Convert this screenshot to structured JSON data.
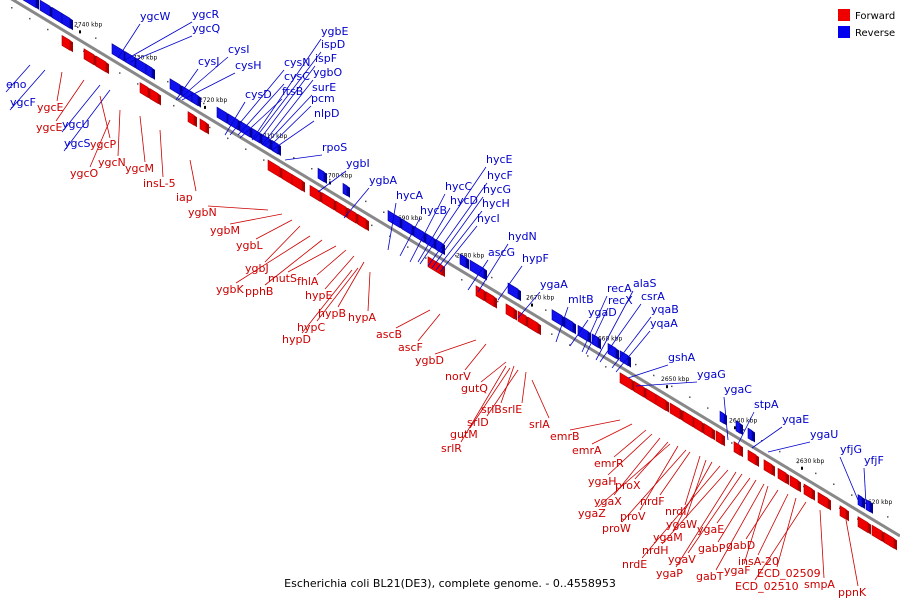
{
  "caption": "Escherichia coli BL21(DE3), complete genome. - 0..4558953",
  "legend": [
    {
      "label": "Forward",
      "color": "#ee0000"
    },
    {
      "label": "Reverse",
      "color": "#0000ee"
    }
  ],
  "colors": {
    "forward": "#ee0000",
    "reverse": "#1111ee",
    "backbone": "#888888"
  },
  "ticks": [
    "2740 kbp",
    "2730 kbp",
    "2720 kbp",
    "2710 kbp",
    "2700 kbp",
    "2690 kbp",
    "2680 kbp",
    "2670 kbp",
    "2660 kbp",
    "2650 kbp",
    "2640 kbp",
    "2630 kbp",
    "2620 kbp"
  ],
  "reverse_genes": [
    "eno",
    "ygcF",
    "ygcW",
    "ygcR",
    "ygcQ",
    "cysI",
    "cysJ",
    "cysH",
    "ygcU",
    "ygcS",
    "cysD",
    "cysN",
    "cysC",
    "ftsB",
    "ygbE",
    "ispD",
    "ispF",
    "ygbO",
    "surE",
    "pcm",
    "nlpD",
    "rpoS",
    "ygbI",
    "ygbA",
    "hycA",
    "hycB",
    "hycC",
    "hycD",
    "hycE",
    "hycF",
    "hycG",
    "hycH",
    "hycI",
    "ascG",
    "hydN",
    "hypF",
    "ygaA",
    "mltB",
    "ygaD",
    "recA",
    "recX",
    "alaS",
    "csrA",
    "yqaB",
    "yqaA",
    "gshA",
    "ygaG",
    "ygaC",
    "stpA",
    "yqaE",
    "ygaU",
    "yfjG",
    "yfjF"
  ],
  "forward_genes": [
    "ygcE",
    "ygcE",
    "ygcP",
    "ygcN",
    "ygcM",
    "ygcO",
    "insL-5",
    "iap",
    "ygbN",
    "ygbM",
    "ygbL",
    "ygbJ",
    "ygbK",
    "pphB",
    "mutS",
    "fhlA",
    "hypE",
    "hypB",
    "hypA",
    "hypC",
    "hypD",
    "ascB",
    "ascF",
    "ygbD",
    "norV",
    "gutQ",
    "srlB",
    "srlE",
    "srlD",
    "gutM",
    "srlR",
    "srlA",
    "emrB",
    "emrA",
    "emrR",
    "ygaH",
    "ygaX",
    "proX",
    "ygaZ",
    "proV",
    "proW",
    "nrdF",
    "nrdI",
    "ygaW",
    "ygaM",
    "nrdE",
    "nrdH",
    "ygaP",
    "ygaV",
    "ygaE",
    "gabP",
    "gabT",
    "ygaF",
    "gabD",
    "insA-20",
    "ECD_02509",
    "ECD_02510",
    "smpA",
    "ppnK"
  ]
}
